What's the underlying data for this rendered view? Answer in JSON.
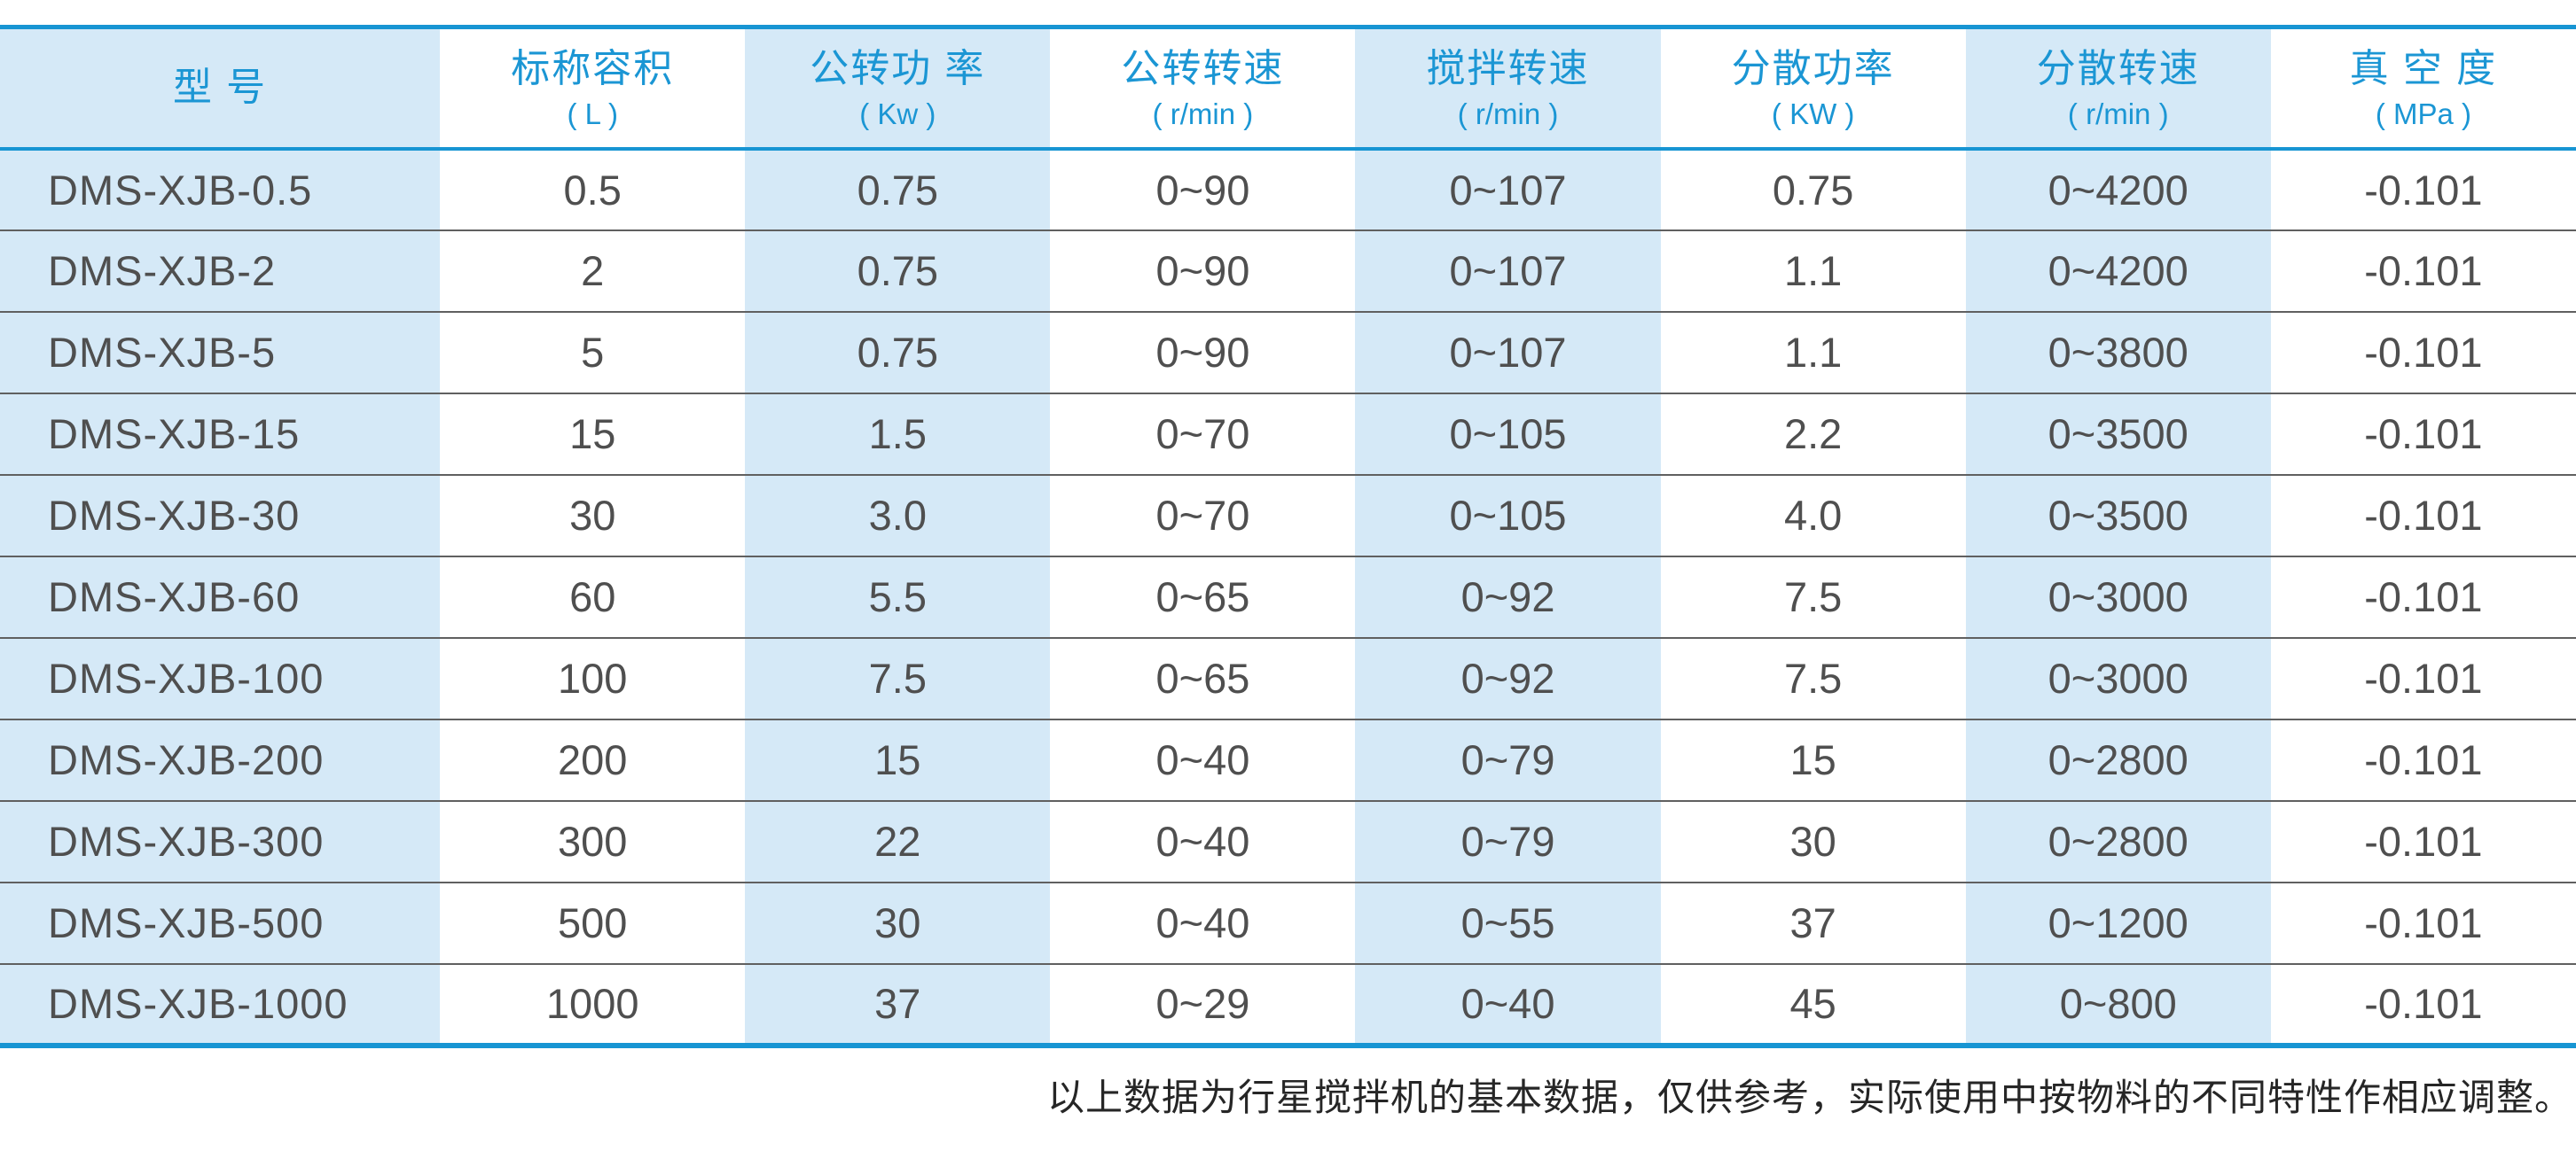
{
  "colors": {
    "accent": "#1795d3",
    "stripe_blue": "#d5e9f7",
    "header_text": "#1b96d4",
    "body_text": "#4f4f4f",
    "separator": "#606060",
    "footnote_text": "#262626"
  },
  "table": {
    "columns": [
      {
        "key": "model",
        "label": "型  号",
        "unit": ""
      },
      {
        "key": "nominal_capacity",
        "label": "标称容积",
        "unit": "( L )"
      },
      {
        "key": "revolution_power",
        "label": "公转功 率",
        "unit": "( Kw )"
      },
      {
        "key": "revolution_speed",
        "label": "公转转速",
        "unit": "( r/min )"
      },
      {
        "key": "stirring_speed",
        "label": "搅拌转速",
        "unit": "( r/min )"
      },
      {
        "key": "dispersing_power",
        "label": "分散功率",
        "unit": "( KW )"
      },
      {
        "key": "dispersing_speed",
        "label": "分散转速",
        "unit": "( r/min )"
      },
      {
        "key": "vacuum_degree",
        "label": "真 空 度",
        "unit": "( MPa )"
      }
    ],
    "rows": [
      [
        "DMS-XJB-0.5",
        "0.5",
        "0.75",
        "0~90",
        "0~107",
        "0.75",
        "0~4200",
        "-0.101"
      ],
      [
        "DMS-XJB-2",
        "2",
        "0.75",
        "0~90",
        "0~107",
        "1.1",
        "0~4200",
        "-0.101"
      ],
      [
        "DMS-XJB-5",
        "5",
        "0.75",
        "0~90",
        "0~107",
        "1.1",
        "0~3800",
        "-0.101"
      ],
      [
        "DMS-XJB-15",
        "15",
        "1.5",
        "0~70",
        "0~105",
        "2.2",
        "0~3500",
        "-0.101"
      ],
      [
        "DMS-XJB-30",
        "30",
        "3.0",
        "0~70",
        "0~105",
        "4.0",
        "0~3500",
        "-0.101"
      ],
      [
        "DMS-XJB-60",
        "60",
        "5.5",
        "0~65",
        "0~92",
        "7.5",
        "0~3000",
        "-0.101"
      ],
      [
        "DMS-XJB-100",
        "100",
        "7.5",
        "0~65",
        "0~92",
        "7.5",
        "0~3000",
        "-0.101"
      ],
      [
        "DMS-XJB-200",
        "200",
        "15",
        "0~40",
        "0~79",
        "15",
        "0~2800",
        "-0.101"
      ],
      [
        "DMS-XJB-300",
        "300",
        "22",
        "0~40",
        "0~79",
        "30",
        "0~2800",
        "-0.101"
      ],
      [
        "DMS-XJB-500",
        "500",
        "30",
        "0~40",
        "0~55",
        "37",
        "0~1200",
        "-0.101"
      ],
      [
        "DMS-XJB-1000",
        "1000",
        "37",
        "0~29",
        "0~40",
        "45",
        "0~800",
        "-0.101"
      ]
    ]
  },
  "footnote": "以上数据为行星搅拌机的基本数据，仅供参考，实际使用中按物料的不同特性作相应调整。"
}
